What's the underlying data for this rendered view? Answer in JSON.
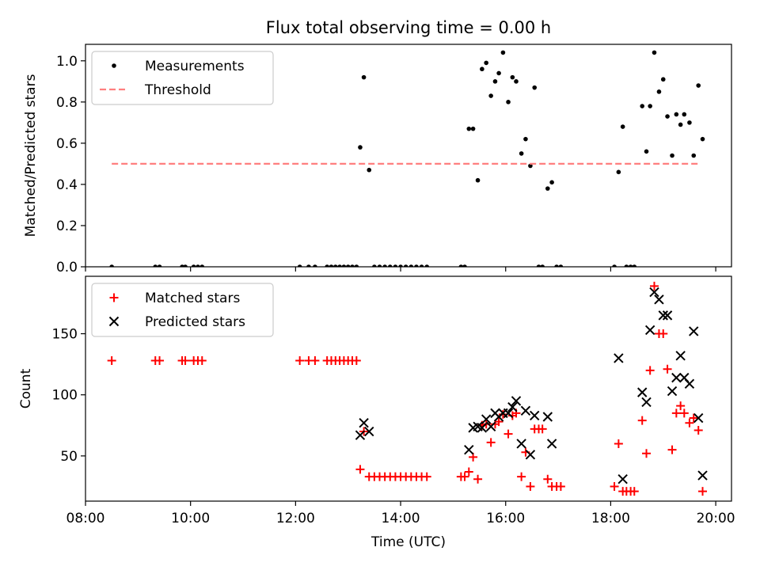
{
  "title": "Flux total observing time = 0.00 h",
  "chart_data": [
    {
      "type": "scatter",
      "ylabel": "Matched/Predicted stars",
      "xlim": [
        8.0,
        20.3
      ],
      "ylim": [
        0,
        1.08
      ],
      "yticks": [
        0.0,
        0.2,
        0.4,
        0.6,
        0.8,
        1.0
      ],
      "ytick_labels": [
        "0.0",
        "0.2",
        "0.4",
        "0.6",
        "0.8",
        "1.0"
      ],
      "legend_position": "top-left",
      "series": [
        {
          "name": "Measurements",
          "marker": "dot",
          "color": "#000000",
          "points": [
            [
              8.5,
              0
            ],
            [
              9.33,
              0
            ],
            [
              9.41,
              0
            ],
            [
              9.84,
              0
            ],
            [
              9.9,
              0
            ],
            [
              10.06,
              0
            ],
            [
              10.14,
              0
            ],
            [
              10.22,
              0
            ],
            [
              12.08,
              0
            ],
            [
              12.25,
              0
            ],
            [
              12.37,
              0
            ],
            [
              12.6,
              0
            ],
            [
              12.68,
              0
            ],
            [
              12.76,
              0
            ],
            [
              12.84,
              0
            ],
            [
              12.92,
              0
            ],
            [
              13.0,
              0
            ],
            [
              13.08,
              0
            ],
            [
              13.16,
              0
            ],
            [
              13.23,
              0.58
            ],
            [
              13.3,
              0.92
            ],
            [
              13.4,
              0.47
            ],
            [
              13.5,
              0
            ],
            [
              13.6,
              0
            ],
            [
              13.7,
              0
            ],
            [
              13.8,
              0
            ],
            [
              13.9,
              0
            ],
            [
              14.0,
              0
            ],
            [
              14.1,
              0
            ],
            [
              14.2,
              0
            ],
            [
              14.3,
              0
            ],
            [
              14.4,
              0
            ],
            [
              14.5,
              0
            ],
            [
              15.15,
              0
            ],
            [
              15.22,
              0
            ],
            [
              15.3,
              0.67
            ],
            [
              15.38,
              0.67
            ],
            [
              15.47,
              0.42
            ],
            [
              15.55,
              0.96
            ],
            [
              15.63,
              0.99
            ],
            [
              15.72,
              0.83
            ],
            [
              15.8,
              0.9
            ],
            [
              15.87,
              0.94
            ],
            [
              15.95,
              1.04
            ],
            [
              16.05,
              0.8
            ],
            [
              16.13,
              0.92
            ],
            [
              16.2,
              0.9
            ],
            [
              16.3,
              0.55
            ],
            [
              16.38,
              0.62
            ],
            [
              16.47,
              0.49
            ],
            [
              16.55,
              0.87
            ],
            [
              16.63,
              0
            ],
            [
              16.7,
              0
            ],
            [
              16.8,
              0.38
            ],
            [
              16.88,
              0.41
            ],
            [
              16.97,
              0
            ],
            [
              17.05,
              0
            ],
            [
              18.07,
              0
            ],
            [
              18.15,
              0.46
            ],
            [
              18.23,
              0.68
            ],
            [
              18.3,
              0
            ],
            [
              18.38,
              0
            ],
            [
              18.45,
              0
            ],
            [
              18.6,
              0.78
            ],
            [
              18.68,
              0.56
            ],
            [
              18.75,
              0.78
            ],
            [
              18.83,
              1.04
            ],
            [
              18.92,
              0.85
            ],
            [
              19.0,
              0.91
            ],
            [
              19.08,
              0.73
            ],
            [
              19.17,
              0.54
            ],
            [
              19.25,
              0.74
            ],
            [
              19.33,
              0.69
            ],
            [
              19.4,
              0.74
            ],
            [
              19.5,
              0.7
            ],
            [
              19.58,
              0.54
            ],
            [
              19.67,
              0.88
            ],
            [
              19.75,
              0.62
            ]
          ]
        },
        {
          "name": "Threshold",
          "marker": "dashed-line",
          "color": "#ff7f7f",
          "points": [
            [
              8.5,
              0.5
            ],
            [
              19.68,
              0.5
            ]
          ]
        }
      ]
    },
    {
      "type": "scatter",
      "xlabel": "Time (UTC)",
      "ylabel": "Count",
      "xlim": [
        8.0,
        20.3
      ],
      "ylim": [
        13,
        197
      ],
      "xticks": [
        8,
        10,
        12,
        14,
        16,
        18,
        20
      ],
      "xtick_labels": [
        "08:00",
        "10:00",
        "12:00",
        "14:00",
        "16:00",
        "18:00",
        "20:00"
      ],
      "yticks": [
        50,
        100,
        150
      ],
      "ytick_labels": [
        "50",
        "100",
        "150"
      ],
      "legend_position": "top-left",
      "series": [
        {
          "name": "Matched stars",
          "marker": "plus",
          "color": "#ff0000",
          "points": [
            [
              8.5,
              128
            ],
            [
              9.33,
              128
            ],
            [
              9.41,
              128
            ],
            [
              9.84,
              128
            ],
            [
              9.9,
              128
            ],
            [
              10.06,
              128
            ],
            [
              10.14,
              128
            ],
            [
              10.22,
              128
            ],
            [
              12.08,
              128
            ],
            [
              12.25,
              128
            ],
            [
              12.37,
              128
            ],
            [
              12.6,
              128
            ],
            [
              12.68,
              128
            ],
            [
              12.76,
              128
            ],
            [
              12.84,
              128
            ],
            [
              12.92,
              128
            ],
            [
              13.0,
              128
            ],
            [
              13.08,
              128
            ],
            [
              13.16,
              128
            ],
            [
              13.23,
              39
            ],
            [
              13.3,
              70
            ],
            [
              13.4,
              33
            ],
            [
              13.5,
              33
            ],
            [
              13.6,
              33
            ],
            [
              13.7,
              33
            ],
            [
              13.8,
              33
            ],
            [
              13.9,
              33
            ],
            [
              14.0,
              33
            ],
            [
              14.1,
              33
            ],
            [
              14.2,
              33
            ],
            [
              14.3,
              33
            ],
            [
              14.4,
              33
            ],
            [
              14.5,
              33
            ],
            [
              15.15,
              33
            ],
            [
              15.22,
              33
            ],
            [
              15.3,
              37
            ],
            [
              15.38,
              49
            ],
            [
              15.47,
              31
            ],
            [
              15.55,
              75
            ],
            [
              15.63,
              76
            ],
            [
              15.72,
              61
            ],
            [
              15.8,
              76
            ],
            [
              15.87,
              78
            ],
            [
              15.95,
              84
            ],
            [
              16.05,
              68
            ],
            [
              16.13,
              83
            ],
            [
              16.2,
              85
            ],
            [
              16.3,
              33
            ],
            [
              16.38,
              53
            ],
            [
              16.47,
              25
            ],
            [
              16.55,
              72
            ],
            [
              16.63,
              72
            ],
            [
              16.7,
              72
            ],
            [
              16.8,
              31
            ],
            [
              16.88,
              25
            ],
            [
              16.97,
              25
            ],
            [
              17.05,
              25
            ],
            [
              18.07,
              25
            ],
            [
              18.15,
              60
            ],
            [
              18.23,
              21
            ],
            [
              18.3,
              21
            ],
            [
              18.38,
              21
            ],
            [
              18.45,
              21
            ],
            [
              18.6,
              79
            ],
            [
              18.68,
              52
            ],
            [
              18.75,
              120
            ],
            [
              18.83,
              189
            ],
            [
              18.92,
              150
            ],
            [
              19.0,
              150
            ],
            [
              19.08,
              121
            ],
            [
              19.17,
              55
            ],
            [
              19.25,
              85
            ],
            [
              19.33,
              91
            ],
            [
              19.4,
              85
            ],
            [
              19.5,
              77
            ],
            [
              19.58,
              81
            ],
            [
              19.67,
              71
            ],
            [
              19.75,
              21
            ]
          ]
        },
        {
          "name": "Predicted stars",
          "marker": "x",
          "color": "#000000",
          "points": [
            [
              13.23,
              67
            ],
            [
              13.3,
              77
            ],
            [
              13.4,
              70
            ],
            [
              15.3,
              55
            ],
            [
              15.38,
              73
            ],
            [
              15.47,
              74
            ],
            [
              15.55,
              73
            ],
            [
              15.63,
              80
            ],
            [
              15.72,
              74
            ],
            [
              15.8,
              85
            ],
            [
              15.87,
              82
            ],
            [
              15.95,
              85
            ],
            [
              16.05,
              85
            ],
            [
              16.13,
              90
            ],
            [
              16.2,
              95
            ],
            [
              16.3,
              60
            ],
            [
              16.38,
              87
            ],
            [
              16.47,
              51
            ],
            [
              16.55,
              83
            ],
            [
              16.8,
              82
            ],
            [
              16.88,
              60
            ],
            [
              18.15,
              130
            ],
            [
              18.23,
              31
            ],
            [
              18.6,
              102
            ],
            [
              18.68,
              94
            ],
            [
              18.75,
              153
            ],
            [
              18.83,
              184
            ],
            [
              18.92,
              178
            ],
            [
              19.0,
              165
            ],
            [
              19.08,
              165
            ],
            [
              19.17,
              103
            ],
            [
              19.25,
              114
            ],
            [
              19.33,
              132
            ],
            [
              19.4,
              114
            ],
            [
              19.5,
              109
            ],
            [
              19.58,
              152
            ],
            [
              19.67,
              81
            ],
            [
              19.75,
              34
            ]
          ]
        }
      ]
    }
  ]
}
